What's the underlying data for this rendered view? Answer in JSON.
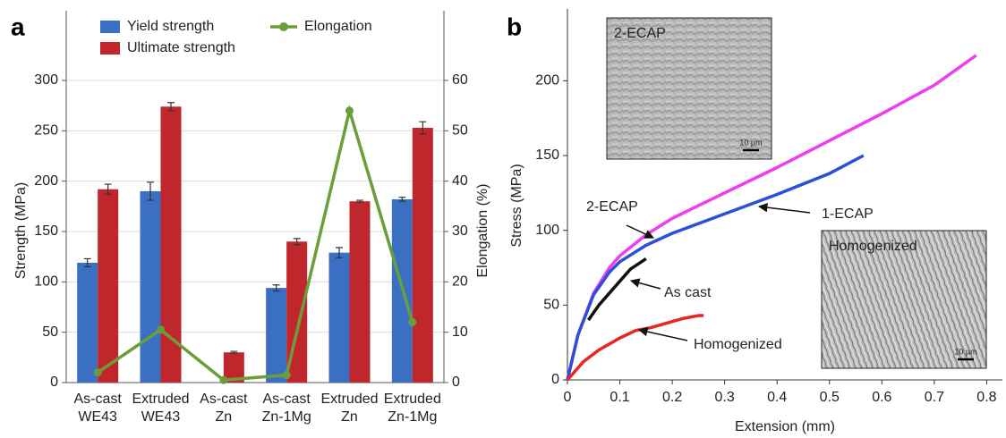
{
  "chart_data": [
    {
      "type": "bar",
      "panel_label": "a",
      "categories": [
        [
          "As-cast",
          "WE43"
        ],
        [
          "Extruded",
          "WE43"
        ],
        [
          "As-cast",
          "Zn"
        ],
        [
          "As-cast",
          "Zn-1Mg"
        ],
        [
          "Extruded",
          "Zn"
        ],
        [
          "Extruded",
          "Zn-1Mg"
        ]
      ],
      "series": [
        {
          "name": "Yield strength",
          "color": "#3b6fc2",
          "values": [
            119,
            190,
            null,
            94,
            129,
            182
          ],
          "errors": [
            4,
            9,
            null,
            3,
            5,
            2
          ]
        },
        {
          "name": "Ultimate strength",
          "color": "#c0272d",
          "values": [
            192,
            274,
            30,
            140,
            180,
            253
          ],
          "errors": [
            5,
            4,
            1,
            3,
            1,
            6
          ]
        },
        {
          "name": "Elongation",
          "type": "line",
          "axis": "y2",
          "color": "#6a9e3a",
          "values": [
            2,
            10.5,
            0.5,
            1.5,
            54,
            12
          ]
        }
      ],
      "y_label": "Strength (MPa)",
      "y2_label": "Elongation (%)",
      "ylim": [
        0,
        300
      ],
      "yticks": [
        0,
        50,
        100,
        150,
        200,
        250,
        300
      ],
      "y2lim": [
        0,
        60
      ],
      "y2ticks": [
        0,
        10,
        20,
        30,
        40,
        50,
        60
      ],
      "grid": true
    },
    {
      "type": "line",
      "panel_label": "b",
      "series": [
        {
          "name": "2-ECAP",
          "color": "#ee3cee",
          "x": [
            0,
            0.02,
            0.05,
            0.08,
            0.1,
            0.15,
            0.2,
            0.3,
            0.4,
            0.5,
            0.6,
            0.7,
            0.78
          ],
          "values": [
            0,
            30,
            58,
            75,
            83,
            97,
            108,
            125,
            142,
            160,
            178,
            197,
            217
          ]
        },
        {
          "name": "1-ECAP",
          "color": "#2b4fd8",
          "x": [
            0,
            0.02,
            0.05,
            0.08,
            0.1,
            0.15,
            0.2,
            0.3,
            0.4,
            0.5,
            0.565
          ],
          "values": [
            0,
            30,
            57,
            72,
            79,
            90,
            98,
            111,
            124,
            138,
            150
          ]
        },
        {
          "name": "As cast",
          "color": "#111111",
          "x": [
            0.04,
            0.06,
            0.08,
            0.1,
            0.12,
            0.15
          ],
          "values": [
            40,
            50,
            58,
            66,
            74,
            81
          ]
        },
        {
          "name": "Homogenized",
          "color": "#e8261e",
          "x": [
            0,
            0.03,
            0.06,
            0.1,
            0.13,
            0.16,
            0.2,
            0.22,
            0.25,
            0.26
          ],
          "values": [
            0,
            12,
            20,
            28,
            33,
            35,
            39,
            41,
            43,
            43
          ]
        }
      ],
      "insets": [
        {
          "label": "2-ECAP",
          "scale": "10 µm"
        },
        {
          "label": "Homogenized",
          "scale": "10 µm"
        }
      ],
      "x_label": "Extension (mm)",
      "y_label": "Stress (MPa)",
      "xlim": [
        0,
        0.83
      ],
      "xticks": [
        0,
        0.1,
        0.2,
        0.3,
        0.4,
        0.5,
        0.6,
        0.7,
        0.8
      ],
      "ylim": [
        0,
        248
      ],
      "yticks": [
        0,
        50,
        100,
        150,
        200
      ]
    }
  ]
}
